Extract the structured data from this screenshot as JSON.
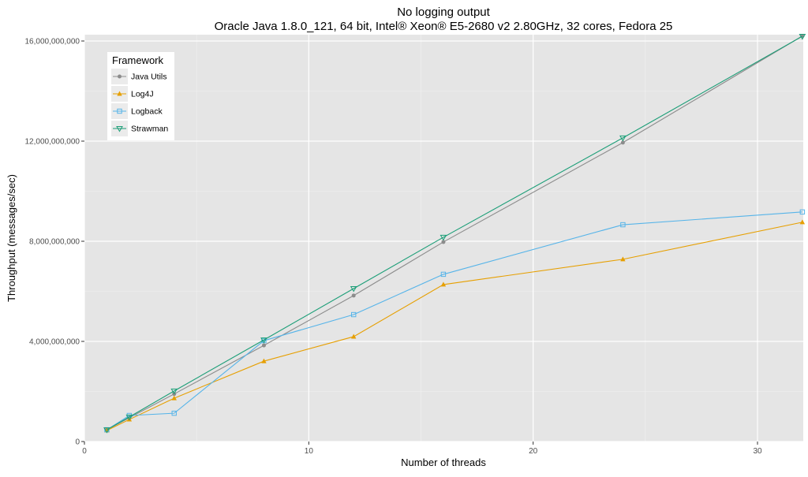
{
  "chart_data": {
    "type": "line",
    "title": "No logging output",
    "subtitle": "Oracle Java 1.8.0_121, 64 bit, Intel® Xeon® E5-2680 v2 2.80GHz, 32 cores, Fedora 25",
    "xlabel": "Number of threads",
    "ylabel": "Throughput (messages/sec)",
    "xlim": [
      0,
      32
    ],
    "ylim": [
      0,
      16200000000
    ],
    "x_ticks": [
      0,
      10,
      20,
      30
    ],
    "x_tick_labels": [
      "0",
      "10",
      "20",
      "30"
    ],
    "y_ticks": [
      0,
      4000000000,
      8000000000,
      12000000000,
      16000000000
    ],
    "y_tick_labels": [
      "0",
      "4,000,000,000",
      "8,000,000,000",
      "12,000,000,000",
      "16,000,000,000"
    ],
    "grid": true,
    "legend": {
      "title": "Framework",
      "placement": "top-left"
    },
    "x": [
      1,
      2,
      4,
      8,
      12,
      16,
      24,
      32
    ],
    "series": [
      {
        "name": "Java Utils",
        "color": "#8c8c8c",
        "marker": "circle",
        "values": [
          470000000,
          950000000,
          1900000000,
          3840000000,
          5830000000,
          7970000000,
          11940000000,
          16200000000
        ]
      },
      {
        "name": "Log4J",
        "color": "#e69f00",
        "marker": "triangle",
        "values": [
          440000000,
          880000000,
          1730000000,
          3210000000,
          4190000000,
          6270000000,
          7280000000,
          8760000000
        ]
      },
      {
        "name": "Logback",
        "color": "#56b4e9",
        "marker": "square",
        "values": [
          470000000,
          1040000000,
          1130000000,
          4030000000,
          5070000000,
          6680000000,
          8660000000,
          9170000000
        ]
      },
      {
        "name": "Strawman",
        "color": "#1b9e77",
        "marker": "triangle-down",
        "values": [
          470000000,
          980000000,
          2020000000,
          4060000000,
          6110000000,
          8160000000,
          12130000000,
          16190000000
        ]
      }
    ]
  }
}
